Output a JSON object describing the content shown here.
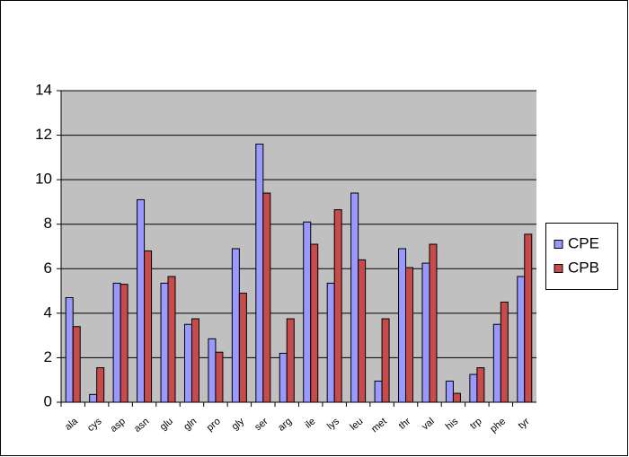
{
  "chart_data": {
    "type": "bar",
    "categories": [
      "ala",
      "cys",
      "asp",
      "asn",
      "glu",
      "gln",
      "pro",
      "gly",
      "ser",
      "arg",
      "ile",
      "lys",
      "leu",
      "met",
      "thr",
      "val",
      "his",
      "trp",
      "phe",
      "tyr"
    ],
    "series": [
      {
        "name": "CPE",
        "color": "#9999ff",
        "values": [
          4.7,
          0.35,
          5.35,
          9.1,
          5.35,
          3.5,
          2.85,
          6.9,
          11.6,
          2.2,
          8.1,
          5.35,
          9.4,
          0.95,
          6.9,
          6.25,
          0.95,
          1.25,
          3.5,
          5.65
        ]
      },
      {
        "name": "CPB",
        "color": "#c84b4b",
        "values": [
          3.4,
          1.55,
          5.3,
          6.8,
          5.65,
          3.75,
          2.25,
          4.9,
          9.4,
          3.75,
          7.1,
          8.65,
          6.4,
          3.75,
          6.05,
          7.1,
          0.4,
          1.55,
          4.5,
          7.55
        ]
      }
    ],
    "ylim": [
      0,
      14
    ],
    "yticks": [
      0,
      2,
      4,
      6,
      8,
      10,
      12,
      14
    ],
    "grid": true,
    "legend": "right"
  }
}
